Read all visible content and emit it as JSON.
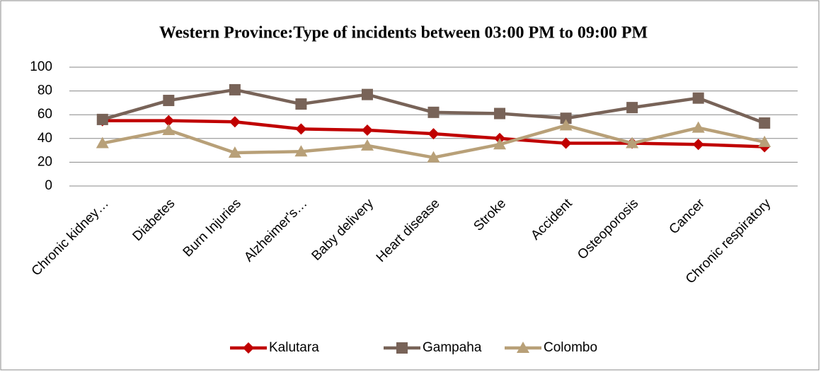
{
  "chart_data": {
    "type": "line",
    "title": "Western Province:Type of incidents between 03:00 PM to 09:00 PM",
    "categories": [
      "Chronic kidney…",
      "Diabetes",
      "Burn Injuries",
      "Alzheimer's…",
      "Baby delivery",
      "Heart disease",
      "Stroke",
      "Accident",
      "Osteoporosis",
      "Cancer",
      "Chronic respiratory"
    ],
    "series": [
      {
        "name": "Kalutara",
        "color": "#c00000",
        "marker": "diamond",
        "values": [
          55,
          55,
          54,
          48,
          47,
          44,
          40,
          36,
          36,
          35,
          33
        ]
      },
      {
        "name": "Gampaha",
        "color": "#786358",
        "marker": "square",
        "values": [
          56,
          72,
          81,
          69,
          77,
          62,
          61,
          57,
          66,
          74,
          53
        ]
      },
      {
        "name": "Colombo",
        "color": "#b8a078",
        "marker": "triangle",
        "values": [
          36,
          47,
          28,
          29,
          34,
          24,
          35,
          51,
          36,
          49,
          37
        ]
      }
    ],
    "ylim": [
      0,
      100
    ],
    "yticks": [
      0,
      20,
      40,
      60,
      80,
      100
    ],
    "grid": true,
    "legend": "bottom"
  }
}
